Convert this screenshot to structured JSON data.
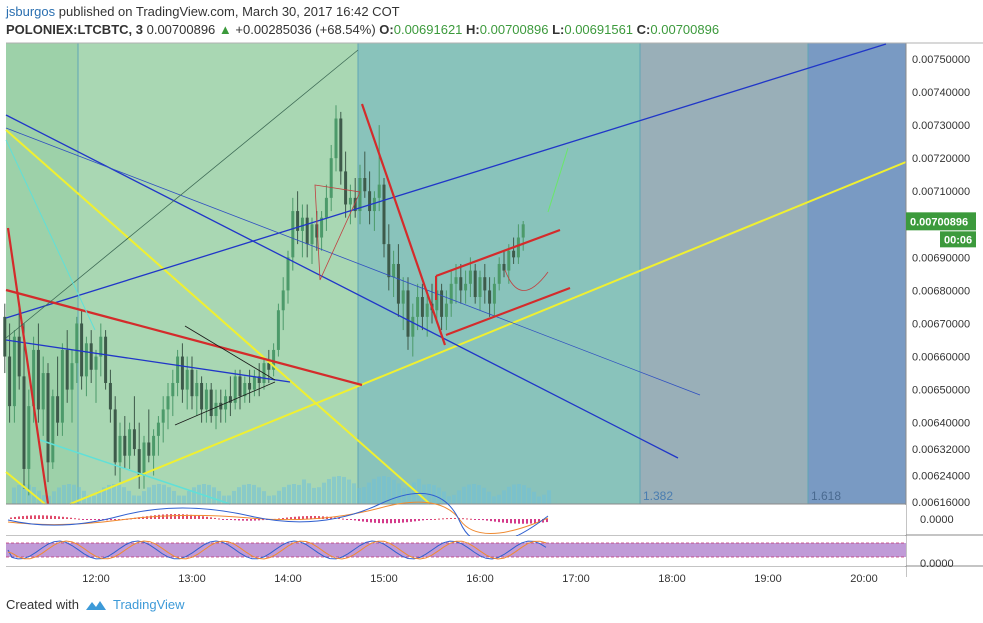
{
  "header": {
    "author": "jsburgos",
    "published_text": "published on TradingView.com, March 30, 2017 16:42 COT",
    "symbol": "POLONIEX:LTCBTC, 3",
    "last": "0.00700896",
    "change": "+0.00285036 (+68.54%)",
    "o_label": "O:",
    "o": "0.00691621",
    "h_label": "H:",
    "h": "0.00700896",
    "l_label": "L:",
    "l": "0.00691561",
    "c_label": "C:",
    "c": "0.00700896"
  },
  "price_axis": {
    "ticks": [
      "0.00750000",
      "0.00740000",
      "0.00730000",
      "0.00720000",
      "0.00710000",
      "0.00690000",
      "0.00680000",
      "0.00670000",
      "0.00660000",
      "0.00650000",
      "0.00640000",
      "0.00632000",
      "0.00624000",
      "0.00616000"
    ],
    "current_price": "0.00700896",
    "countdown": "00:06"
  },
  "time_axis": {
    "ticks": [
      "12:00",
      "13:00",
      "14:00",
      "15:00",
      "16:00",
      "17:00",
      "18:00",
      "19:00",
      "20:00"
    ]
  },
  "fib_labels": [
    "1.382",
    "1.618"
  ],
  "indicator1": {
    "value_label": "0.0000"
  },
  "indicator2": {
    "value_label": "0.0000"
  },
  "footer": {
    "created_with": "Created with",
    "brand": "TradingView"
  },
  "colors": {
    "zone_green": "#8cc99a",
    "zone_teal": "#7cbcb4",
    "zone_blue": "#7aaebf",
    "zone_gray": "#8ea6b0",
    "zone_dark": "#6a8fbc",
    "up_candle": "#4c9a6a",
    "down_candle": "#3d5a4a",
    "trend_red": "#d42b2b",
    "trend_blue": "#2036c8",
    "trend_yellow": "#f0f030",
    "price_label_bg": "#3c9a3c"
  },
  "chart_data": {
    "type": "candlestick",
    "title": "POLONIEX:LTCBTC, 3",
    "x_ticks": [
      "12:00",
      "13:00",
      "14:00",
      "15:00",
      "16:00",
      "17:00",
      "18:00",
      "19:00",
      "20:00"
    ],
    "y_range": [
      0.00614,
      0.00756
    ],
    "last_price": 0.00700896,
    "open": 0.00691621,
    "high": 0.00700896,
    "low": 0.00691561,
    "close": 0.00700896,
    "fib_levels": [
      1.382,
      1.618
    ],
    "candles": [
      [
        11.05,
        0.00672,
        0.00676,
        0.00655,
        0.0066
      ],
      [
        11.1,
        0.0066,
        0.0067,
        0.0064,
        0.00645
      ],
      [
        11.15,
        0.00645,
        0.00668,
        0.0064,
        0.00666
      ],
      [
        11.2,
        0.00666,
        0.00676,
        0.0065,
        0.00654
      ],
      [
        11.25,
        0.00654,
        0.0067,
        0.0062,
        0.00626
      ],
      [
        11.3,
        0.00626,
        0.0065,
        0.00618,
        0.00645
      ],
      [
        11.35,
        0.00645,
        0.00666,
        0.0064,
        0.00662
      ],
      [
        11.4,
        0.00662,
        0.0067,
        0.0064,
        0.00644
      ],
      [
        11.45,
        0.00644,
        0.0066,
        0.00636,
        0.00655
      ],
      [
        11.5,
        0.00655,
        0.00658,
        0.00622,
        0.00628
      ],
      [
        11.55,
        0.00628,
        0.0065,
        0.00626,
        0.00648
      ],
      [
        11.6,
        0.00648,
        0.0066,
        0.00636,
        0.0064
      ],
      [
        11.65,
        0.0064,
        0.00664,
        0.00636,
        0.00662
      ],
      [
        11.7,
        0.00662,
        0.00668,
        0.00646,
        0.0065
      ],
      [
        11.75,
        0.0065,
        0.00662,
        0.0064,
        0.00658
      ],
      [
        11.8,
        0.00658,
        0.00672,
        0.00652,
        0.0067
      ],
      [
        11.85,
        0.0067,
        0.00674,
        0.0065,
        0.00654
      ],
      [
        11.9,
        0.00654,
        0.00666,
        0.00648,
        0.00664
      ],
      [
        11.95,
        0.00664,
        0.00668,
        0.00652,
        0.00656
      ],
      [
        12.0,
        0.00656,
        0.00662,
        0.00646,
        0.0066
      ],
      [
        12.05,
        0.0066,
        0.0067,
        0.00654,
        0.00666
      ],
      [
        12.1,
        0.00666,
        0.00668,
        0.0065,
        0.00652
      ],
      [
        12.15,
        0.00652,
        0.00656,
        0.0064,
        0.00644
      ],
      [
        12.2,
        0.00644,
        0.00648,
        0.00624,
        0.00628
      ],
      [
        12.25,
        0.00628,
        0.0064,
        0.00622,
        0.00636
      ],
      [
        12.3,
        0.00636,
        0.00642,
        0.00626,
        0.0063
      ],
      [
        12.35,
        0.0063,
        0.0064,
        0.00626,
        0.00638
      ],
      [
        12.4,
        0.00638,
        0.00648,
        0.0063,
        0.00632
      ],
      [
        12.45,
        0.00632,
        0.0064,
        0.0062,
        0.00624
      ],
      [
        12.5,
        0.00624,
        0.00636,
        0.0062,
        0.00634
      ],
      [
        12.55,
        0.00634,
        0.00644,
        0.00628,
        0.0063
      ],
      [
        12.6,
        0.0063,
        0.00638,
        0.00624,
        0.00636
      ],
      [
        12.65,
        0.00636,
        0.00642,
        0.0063,
        0.0064
      ],
      [
        12.7,
        0.0064,
        0.00648,
        0.00634,
        0.00644
      ],
      [
        12.75,
        0.00644,
        0.00652,
        0.00638,
        0.00648
      ],
      [
        12.8,
        0.00648,
        0.00656,
        0.00642,
        0.00652
      ],
      [
        12.85,
        0.00652,
        0.00662,
        0.00648,
        0.0066
      ],
      [
        12.9,
        0.0066,
        0.00664,
        0.00646,
        0.0065
      ],
      [
        12.95,
        0.0065,
        0.0066,
        0.00644,
        0.00656
      ],
      [
        13.0,
        0.00656,
        0.0066,
        0.00644,
        0.00648
      ],
      [
        13.05,
        0.00648,
        0.00656,
        0.00642,
        0.00652
      ],
      [
        13.1,
        0.00652,
        0.00654,
        0.0064,
        0.00644
      ],
      [
        13.15,
        0.00644,
        0.00652,
        0.0064,
        0.0065
      ],
      [
        13.2,
        0.0065,
        0.00652,
        0.0064,
        0.00642
      ],
      [
        13.25,
        0.00642,
        0.0065,
        0.00638,
        0.00646
      ],
      [
        13.3,
        0.00646,
        0.0065,
        0.0064,
        0.00644
      ],
      [
        13.35,
        0.00644,
        0.0065,
        0.0064,
        0.00648
      ],
      [
        13.4,
        0.00648,
        0.00654,
        0.00642,
        0.00646
      ],
      [
        13.45,
        0.00646,
        0.00656,
        0.00644,
        0.00654
      ],
      [
        13.5,
        0.00654,
        0.00656,
        0.00644,
        0.00648
      ],
      [
        13.55,
        0.00648,
        0.00654,
        0.00646,
        0.00652
      ],
      [
        13.6,
        0.00652,
        0.00656,
        0.00646,
        0.0065
      ],
      [
        13.65,
        0.0065,
        0.00656,
        0.00648,
        0.00654
      ],
      [
        13.7,
        0.00654,
        0.00658,
        0.00648,
        0.00652
      ],
      [
        13.75,
        0.00652,
        0.0066,
        0.0065,
        0.00658
      ],
      [
        13.8,
        0.00658,
        0.00662,
        0.00652,
        0.00656
      ],
      [
        13.85,
        0.00656,
        0.00664,
        0.00654,
        0.00662
      ],
      [
        13.9,
        0.00662,
        0.00676,
        0.0066,
        0.00674
      ],
      [
        13.95,
        0.00674,
        0.00684,
        0.00668,
        0.0068
      ],
      [
        14.0,
        0.0068,
        0.00692,
        0.00676,
        0.0069
      ],
      [
        14.05,
        0.0069,
        0.00708,
        0.00686,
        0.00704
      ],
      [
        14.1,
        0.00704,
        0.0071,
        0.00694,
        0.00698
      ],
      [
        14.15,
        0.00698,
        0.00706,
        0.0069,
        0.00702
      ],
      [
        14.2,
        0.00702,
        0.00706,
        0.0069,
        0.00694
      ],
      [
        14.25,
        0.00694,
        0.00702,
        0.00688,
        0.007
      ],
      [
        14.3,
        0.007,
        0.00704,
        0.00692,
        0.00696
      ],
      [
        14.35,
        0.00696,
        0.00704,
        0.00692,
        0.00702
      ],
      [
        14.4,
        0.00702,
        0.00712,
        0.00698,
        0.00708
      ],
      [
        14.45,
        0.00708,
        0.00724,
        0.00704,
        0.0072
      ],
      [
        14.5,
        0.0072,
        0.00736,
        0.00716,
        0.00732
      ],
      [
        14.55,
        0.00732,
        0.00734,
        0.00712,
        0.00716
      ],
      [
        14.6,
        0.00716,
        0.00722,
        0.00702,
        0.00706
      ],
      [
        14.65,
        0.00706,
        0.00712,
        0.007,
        0.00708
      ],
      [
        14.7,
        0.00708,
        0.00714,
        0.00702,
        0.00704
      ],
      [
        14.75,
        0.00704,
        0.00718,
        0.007,
        0.00714
      ],
      [
        14.8,
        0.00714,
        0.00722,
        0.00708,
        0.0071
      ],
      [
        14.85,
        0.0071,
        0.00716,
        0.007,
        0.00704
      ],
      [
        14.9,
        0.00704,
        0.0071,
        0.00698,
        0.00708
      ],
      [
        14.95,
        0.00708,
        0.0073,
        0.00704,
        0.00712
      ],
      [
        15.0,
        0.00712,
        0.00714,
        0.0069,
        0.00694
      ],
      [
        15.05,
        0.00694,
        0.007,
        0.0068,
        0.00684
      ],
      [
        15.1,
        0.00684,
        0.00692,
        0.00678,
        0.00688
      ],
      [
        15.15,
        0.00688,
        0.00694,
        0.00672,
        0.00676
      ],
      [
        15.2,
        0.00676,
        0.00684,
        0.00668,
        0.0068
      ],
      [
        15.25,
        0.0068,
        0.00684,
        0.00662,
        0.00666
      ],
      [
        15.3,
        0.00666,
        0.00676,
        0.0066,
        0.00672
      ],
      [
        15.35,
        0.00672,
        0.00682,
        0.00668,
        0.00678
      ],
      [
        15.4,
        0.00678,
        0.00682,
        0.00668,
        0.00672
      ],
      [
        15.45,
        0.00672,
        0.0068,
        0.00666,
        0.00676
      ],
      [
        15.5,
        0.00676,
        0.00682,
        0.0067,
        0.00674
      ],
      [
        15.55,
        0.00674,
        0.00684,
        0.0067,
        0.0068
      ],
      [
        15.6,
        0.0068,
        0.00682,
        0.00668,
        0.00672
      ],
      [
        15.65,
        0.00672,
        0.0068,
        0.00668,
        0.00676
      ],
      [
        15.7,
        0.00676,
        0.00686,
        0.00672,
        0.00682
      ],
      [
        15.75,
        0.00682,
        0.00688,
        0.00676,
        0.00684
      ],
      [
        15.8,
        0.00684,
        0.00688,
        0.00676,
        0.0068
      ],
      [
        15.85,
        0.0068,
        0.00686,
        0.00676,
        0.00682
      ],
      [
        15.9,
        0.00682,
        0.0069,
        0.00678,
        0.00686
      ],
      [
        15.95,
        0.00686,
        0.00688,
        0.00676,
        0.00678
      ],
      [
        16.0,
        0.00678,
        0.00686,
        0.00674,
        0.00684
      ],
      [
        16.05,
        0.00684,
        0.00688,
        0.00676,
        0.0068
      ],
      [
        16.1,
        0.0068,
        0.00684,
        0.00672,
        0.00676
      ],
      [
        16.15,
        0.00676,
        0.00684,
        0.00672,
        0.00682
      ],
      [
        16.2,
        0.00682,
        0.0069,
        0.0068,
        0.00688
      ],
      [
        16.25,
        0.00688,
        0.00692,
        0.00684,
        0.00686
      ],
      [
        16.3,
        0.00686,
        0.00694,
        0.00682,
        0.00692
      ],
      [
        16.35,
        0.00692,
        0.00696,
        0.00688,
        0.0069
      ],
      [
        16.4,
        0.0069,
        0.007,
        0.00688,
        0.00696
      ],
      [
        16.45,
        0.00696,
        0.00701,
        0.00692,
        0.007
      ]
    ]
  }
}
